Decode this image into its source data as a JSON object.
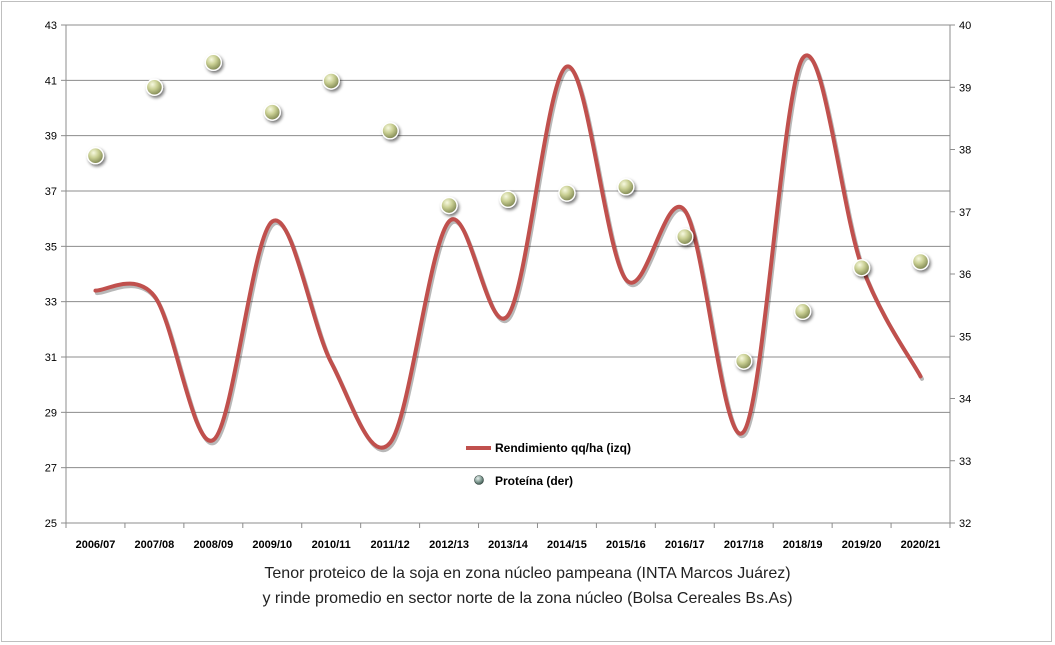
{
  "chart_data": {
    "type": "line",
    "categories": [
      "2006/07",
      "2007/08",
      "2008/09",
      "2009/10",
      "2010/11",
      "2011/12",
      "2012/13",
      "2013/14",
      "2014/15",
      "2015/16",
      "2016/17",
      "2017/18",
      "2018/19",
      "2019/20",
      "2020/21"
    ],
    "series": [
      {
        "name": "Rendimiento qq/ha (izq)",
        "axis": "left",
        "style": "smooth-line",
        "color": "#c0504d",
        "values": [
          33.4,
          33.2,
          28.0,
          35.9,
          30.8,
          27.9,
          35.9,
          32.5,
          41.5,
          33.8,
          36.3,
          28.3,
          41.8,
          34.3,
          30.3
        ]
      },
      {
        "name": "Proteína (der)",
        "axis": "right",
        "style": "markers",
        "color": "#c4c98a",
        "values": [
          37.9,
          39.0,
          39.4,
          38.6,
          39.1,
          38.3,
          37.1,
          37.2,
          37.3,
          37.4,
          36.6,
          34.6,
          35.4,
          36.1,
          36.2
        ]
      }
    ],
    "y_left": {
      "min": 25,
      "max": 43,
      "ticks": [
        25,
        27,
        29,
        31,
        33,
        35,
        37,
        39,
        41,
        43
      ]
    },
    "y_right": {
      "min": 32,
      "max": 40,
      "ticks": [
        32,
        33,
        34,
        35,
        36,
        37,
        38,
        39,
        40
      ]
    },
    "grid": true,
    "legend_position": "center-bottom",
    "caption": [
      "Tenor proteico de la soja en zona núcleo pampeana (INTA Marcos Juárez)",
      "y rinde promedio en sector norte de la zona núcleo (Bolsa Cereales Bs.As)"
    ]
  }
}
